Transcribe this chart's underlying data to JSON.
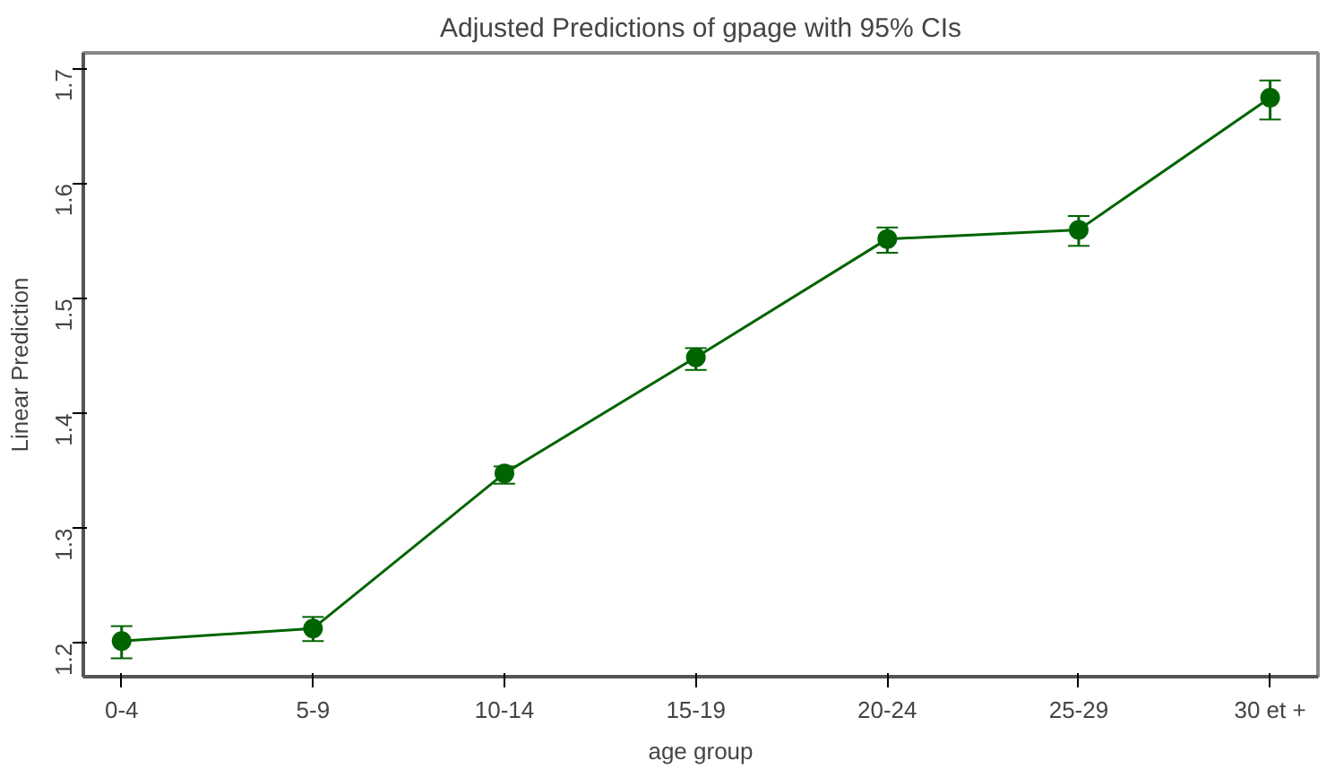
{
  "chart_data": {
    "type": "line",
    "title": "Adjusted Predictions of gpage with 95% CIs",
    "xlabel": "age group",
    "ylabel": "Linear Prediction",
    "categories": [
      "0-4",
      "5-9",
      "10-14",
      "15-19",
      "20-24",
      "25-29",
      "30 et +"
    ],
    "values": [
      1.202,
      1.213,
      1.348,
      1.449,
      1.552,
      1.56,
      1.675
    ],
    "errors": [
      [
        1.187,
        1.215
      ],
      [
        1.202,
        1.223
      ],
      [
        1.339,
        1.354
      ],
      [
        1.438,
        1.457
      ],
      [
        1.54,
        1.562
      ],
      [
        1.546,
        1.572
      ],
      [
        1.656,
        1.69
      ]
    ],
    "color": "#006400",
    "marker": "circle",
    "line_style": "solid",
    "ylim": [
      1.171,
      1.714
    ],
    "yticks": [
      1.2,
      1.3,
      1.4,
      1.5,
      1.6,
      1.7
    ],
    "grid": false
  }
}
